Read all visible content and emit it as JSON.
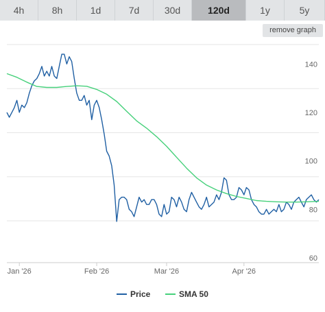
{
  "range_tabs": [
    {
      "label": "4h",
      "active": false
    },
    {
      "label": "8h",
      "active": false
    },
    {
      "label": "1d",
      "active": false
    },
    {
      "label": "7d",
      "active": false
    },
    {
      "label": "30d",
      "active": false
    },
    {
      "label": "120d",
      "active": true
    },
    {
      "label": "1y",
      "active": false
    },
    {
      "label": "5y",
      "active": false
    }
  ],
  "remove_graph_label": "remove graph",
  "colors": {
    "price": "#1f5fa3",
    "sma": "#45d07a",
    "grid": "#e6e6e6",
    "axis_text": "#666666"
  },
  "chart_data": {
    "type": "line",
    "title": "",
    "xlabel": "",
    "ylabel": "",
    "ylim": [
      60,
      150
    ],
    "yticks": [
      60,
      80,
      100,
      120,
      140
    ],
    "xticks": [
      {
        "label": "Jan '26",
        "day": 5
      },
      {
        "label": "Feb '26",
        "day": 36
      },
      {
        "label": "Mar '26",
        "day": 64
      },
      {
        "label": "Apr '26",
        "day": 95
      }
    ],
    "grid": true,
    "legend_position": "bottom",
    "series": [
      {
        "name": "Price",
        "color": "#1f5fa3",
        "points": [
          [
            0,
            122
          ],
          [
            1,
            120
          ],
          [
            2,
            122
          ],
          [
            3,
            124
          ],
          [
            4,
            127
          ],
          [
            5,
            122
          ],
          [
            6,
            125
          ],
          [
            7,
            124
          ],
          [
            8,
            126
          ],
          [
            9,
            130
          ],
          [
            10,
            133
          ],
          [
            11,
            135
          ],
          [
            12,
            136
          ],
          [
            13,
            138
          ],
          [
            14,
            141
          ],
          [
            15,
            137
          ],
          [
            16,
            139
          ],
          [
            17,
            137
          ],
          [
            18,
            141
          ],
          [
            19,
            137
          ],
          [
            20,
            136
          ],
          [
            21,
            141
          ],
          [
            22,
            146
          ],
          [
            23,
            146
          ],
          [
            24,
            142
          ],
          [
            25,
            145
          ],
          [
            26,
            143
          ],
          [
            27,
            136
          ],
          [
            28,
            130
          ],
          [
            29,
            127
          ],
          [
            30,
            127
          ],
          [
            31,
            129
          ],
          [
            32,
            125
          ],
          [
            33,
            127
          ],
          [
            34,
            119
          ],
          [
            35,
            125
          ],
          [
            36,
            127
          ],
          [
            37,
            124
          ],
          [
            38,
            119
          ],
          [
            39,
            113
          ],
          [
            40,
            106
          ],
          [
            41,
            104
          ],
          [
            42,
            100
          ],
          [
            43,
            92
          ],
          [
            44,
            77
          ],
          [
            45,
            86
          ],
          [
            46,
            87
          ],
          [
            47,
            87
          ],
          [
            48,
            86
          ],
          [
            49,
            82
          ],
          [
            50,
            81
          ],
          [
            51,
            79
          ],
          [
            52,
            83
          ],
          [
            53,
            87
          ],
          [
            54,
            85
          ],
          [
            55,
            86
          ],
          [
            56,
            84
          ],
          [
            57,
            84
          ],
          [
            58,
            86
          ],
          [
            59,
            86
          ],
          [
            60,
            84
          ],
          [
            61,
            80
          ],
          [
            62,
            79
          ],
          [
            63,
            84
          ],
          [
            64,
            80
          ],
          [
            65,
            81
          ],
          [
            66,
            87
          ],
          [
            67,
            86
          ],
          [
            68,
            83
          ],
          [
            69,
            87
          ],
          [
            70,
            85
          ],
          [
            71,
            82
          ],
          [
            72,
            81
          ],
          [
            73,
            86
          ],
          [
            74,
            89
          ],
          [
            75,
            87
          ],
          [
            76,
            85
          ],
          [
            77,
            83
          ],
          [
            78,
            82
          ],
          [
            79,
            84
          ],
          [
            80,
            87
          ],
          [
            81,
            83
          ],
          [
            82,
            84
          ],
          [
            83,
            85
          ],
          [
            84,
            88
          ],
          [
            85,
            86
          ],
          [
            86,
            89
          ],
          [
            87,
            95
          ],
          [
            88,
            94
          ],
          [
            89,
            88
          ],
          [
            90,
            86
          ],
          [
            91,
            86
          ],
          [
            92,
            87
          ],
          [
            93,
            91
          ],
          [
            94,
            90
          ],
          [
            95,
            88
          ],
          [
            96,
            91
          ],
          [
            97,
            90
          ],
          [
            98,
            86
          ],
          [
            99,
            84
          ],
          [
            100,
            83
          ],
          [
            101,
            81
          ],
          [
            102,
            80
          ],
          [
            103,
            80
          ],
          [
            104,
            82
          ],
          [
            105,
            80
          ],
          [
            106,
            81
          ],
          [
            107,
            82
          ],
          [
            108,
            81
          ],
          [
            109,
            84
          ],
          [
            110,
            81
          ],
          [
            111,
            82
          ],
          [
            112,
            85
          ],
          [
            113,
            84
          ],
          [
            114,
            82
          ],
          [
            115,
            85
          ],
          [
            116,
            86
          ],
          [
            117,
            87
          ],
          [
            118,
            85
          ],
          [
            119,
            83
          ],
          [
            120,
            86
          ],
          [
            121,
            87
          ],
          [
            122,
            88
          ],
          [
            123,
            86
          ],
          [
            124,
            85
          ],
          [
            125,
            86
          ]
        ]
      },
      {
        "name": "SMA 50",
        "color": "#45d07a",
        "points": [
          [
            0,
            138
          ],
          [
            4,
            136.5
          ],
          [
            8,
            134.5
          ],
          [
            12,
            132.7
          ],
          [
            16,
            132.3
          ],
          [
            20,
            132.3
          ],
          [
            24,
            132.7
          ],
          [
            28,
            133
          ],
          [
            32,
            132.8
          ],
          [
            36,
            131.5
          ],
          [
            40,
            129.5
          ],
          [
            44,
            126.5
          ],
          [
            48,
            122.5
          ],
          [
            52,
            118.5
          ],
          [
            56,
            115.5
          ],
          [
            60,
            112
          ],
          [
            64,
            108
          ],
          [
            68,
            103.5
          ],
          [
            72,
            99
          ],
          [
            76,
            95
          ],
          [
            80,
            92
          ],
          [
            84,
            90
          ],
          [
            88,
            88.5
          ],
          [
            92,
            87.3
          ],
          [
            96,
            86.5
          ],
          [
            100,
            85.6
          ],
          [
            104,
            85.3
          ],
          [
            108,
            85.1
          ],
          [
            112,
            85
          ],
          [
            116,
            85
          ],
          [
            120,
            85.1
          ],
          [
            125,
            85.3
          ]
        ]
      }
    ]
  }
}
